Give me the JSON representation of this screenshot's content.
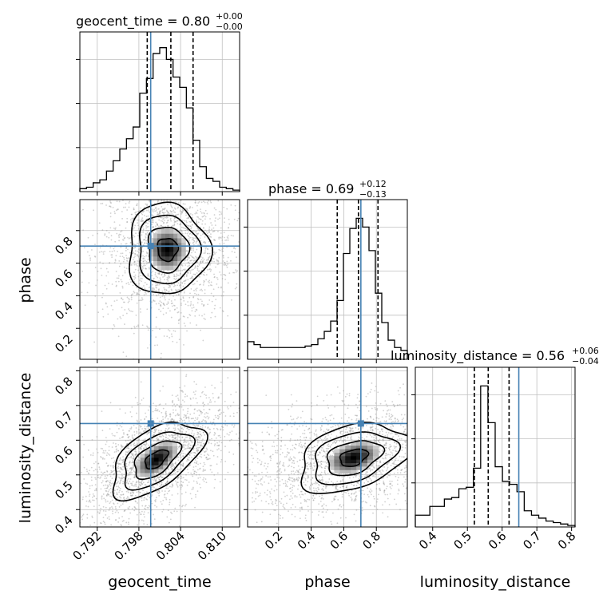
{
  "chart_data": {
    "type": "corner",
    "parameters": [
      "geocent_time",
      "phase",
      "luminosity_distance"
    ],
    "truths": {
      "geocent_time": 0.7997,
      "phase": 0.705,
      "luminosity_distance": 0.648
    },
    "colors": {
      "truth": "#4682b4",
      "hist": "#000000",
      "grid": "#c0c0c0",
      "frame": "#000000"
    },
    "grid": true,
    "titles": [
      {
        "param": "geocent_time",
        "main": "geocent_time = 0.80",
        "plus": "+0.00",
        "minus": "−0.00"
      },
      {
        "param": "phase",
        "main": "phase = 0.69",
        "plus": "+0.12",
        "minus": "−0.13"
      },
      {
        "param": "luminosity_distance",
        "main": "luminosity_distance = 0.56",
        "plus": "+0.06",
        "minus": "−0.04"
      }
    ],
    "axis_labels": {
      "x": [
        "geocent_time",
        "phase",
        "luminosity_distance"
      ],
      "y": [
        "phase",
        "luminosity_distance"
      ]
    },
    "ranges": {
      "geocent_time": [
        0.7895,
        0.8125
      ],
      "phase": [
        0.01,
        0.99
      ],
      "luminosity_distance": [
        0.35,
        0.81
      ]
    },
    "ticks": {
      "geocent_time": [
        "0.792",
        "0.798",
        "0.804",
        "0.810"
      ],
      "phase_x": [
        "0.2",
        "0.4",
        "0.6",
        "0.8"
      ],
      "phase_y": [
        "0.2",
        "0.4",
        "0.6",
        "0.8"
      ],
      "luminosity_distance_x": [
        "0.4",
        "0.5",
        "0.6",
        "0.7",
        "0.8"
      ],
      "luminosity_distance_y": [
        "0.4",
        "0.5",
        "0.6",
        "0.7",
        "0.8"
      ]
    },
    "quantiles": {
      "geocent_time": [
        0.7992,
        0.8026,
        0.8058
      ],
      "phase": [
        0.56,
        0.69,
        0.81
      ],
      "luminosity_distance": [
        0.52,
        0.56,
        0.62
      ]
    },
    "histograms": {
      "geocent_time": {
        "range": [
          0.7895,
          0.8125
        ],
        "values": [
          0.02,
          0.03,
          0.06,
          0.08,
          0.14,
          0.21,
          0.29,
          0.36,
          0.44,
          0.67,
          0.77,
          0.94,
          0.98,
          0.9,
          0.78,
          0.71,
          0.57,
          0.35,
          0.17,
          0.09,
          0.07,
          0.03,
          0.02,
          0.01
        ]
      },
      "phase": {
        "range": [
          0.01,
          0.99
        ],
        "values": [
          0.12,
          0.1,
          0.08,
          0.08,
          0.08,
          0.08,
          0.08,
          0.08,
          0.08,
          0.09,
          0.1,
          0.14,
          0.19,
          0.26,
          0.4,
          0.72,
          0.89,
          0.96,
          0.9,
          0.74,
          0.45,
          0.25,
          0.13,
          0.08,
          0.06
        ]
      },
      "luminosity_distance": {
        "range": [
          0.35,
          0.81
        ],
        "values": [
          0.08,
          0.08,
          0.14,
          0.14,
          0.19,
          0.2,
          0.26,
          0.27,
          0.4,
          0.96,
          0.71,
          0.41,
          0.31,
          0.29,
          0.24,
          0.11,
          0.08,
          0.06,
          0.04,
          0.03,
          0.02,
          0.01
        ]
      }
    },
    "panels_2d": [
      {
        "x": "geocent_time",
        "y": "phase",
        "center": [
          0.8021,
          0.685
        ],
        "spread": [
          0.0029,
          0.14
        ],
        "corr": 0.0
      },
      {
        "x": "geocent_time",
        "y": "luminosity_distance",
        "center": [
          0.8005,
          0.545
        ],
        "spread": [
          0.0033,
          0.055
        ],
        "corr": 0.55
      },
      {
        "x": "phase",
        "y": "luminosity_distance",
        "center": [
          0.66,
          0.55
        ],
        "spread": [
          0.17,
          0.05
        ],
        "corr": 0.35
      }
    ]
  }
}
